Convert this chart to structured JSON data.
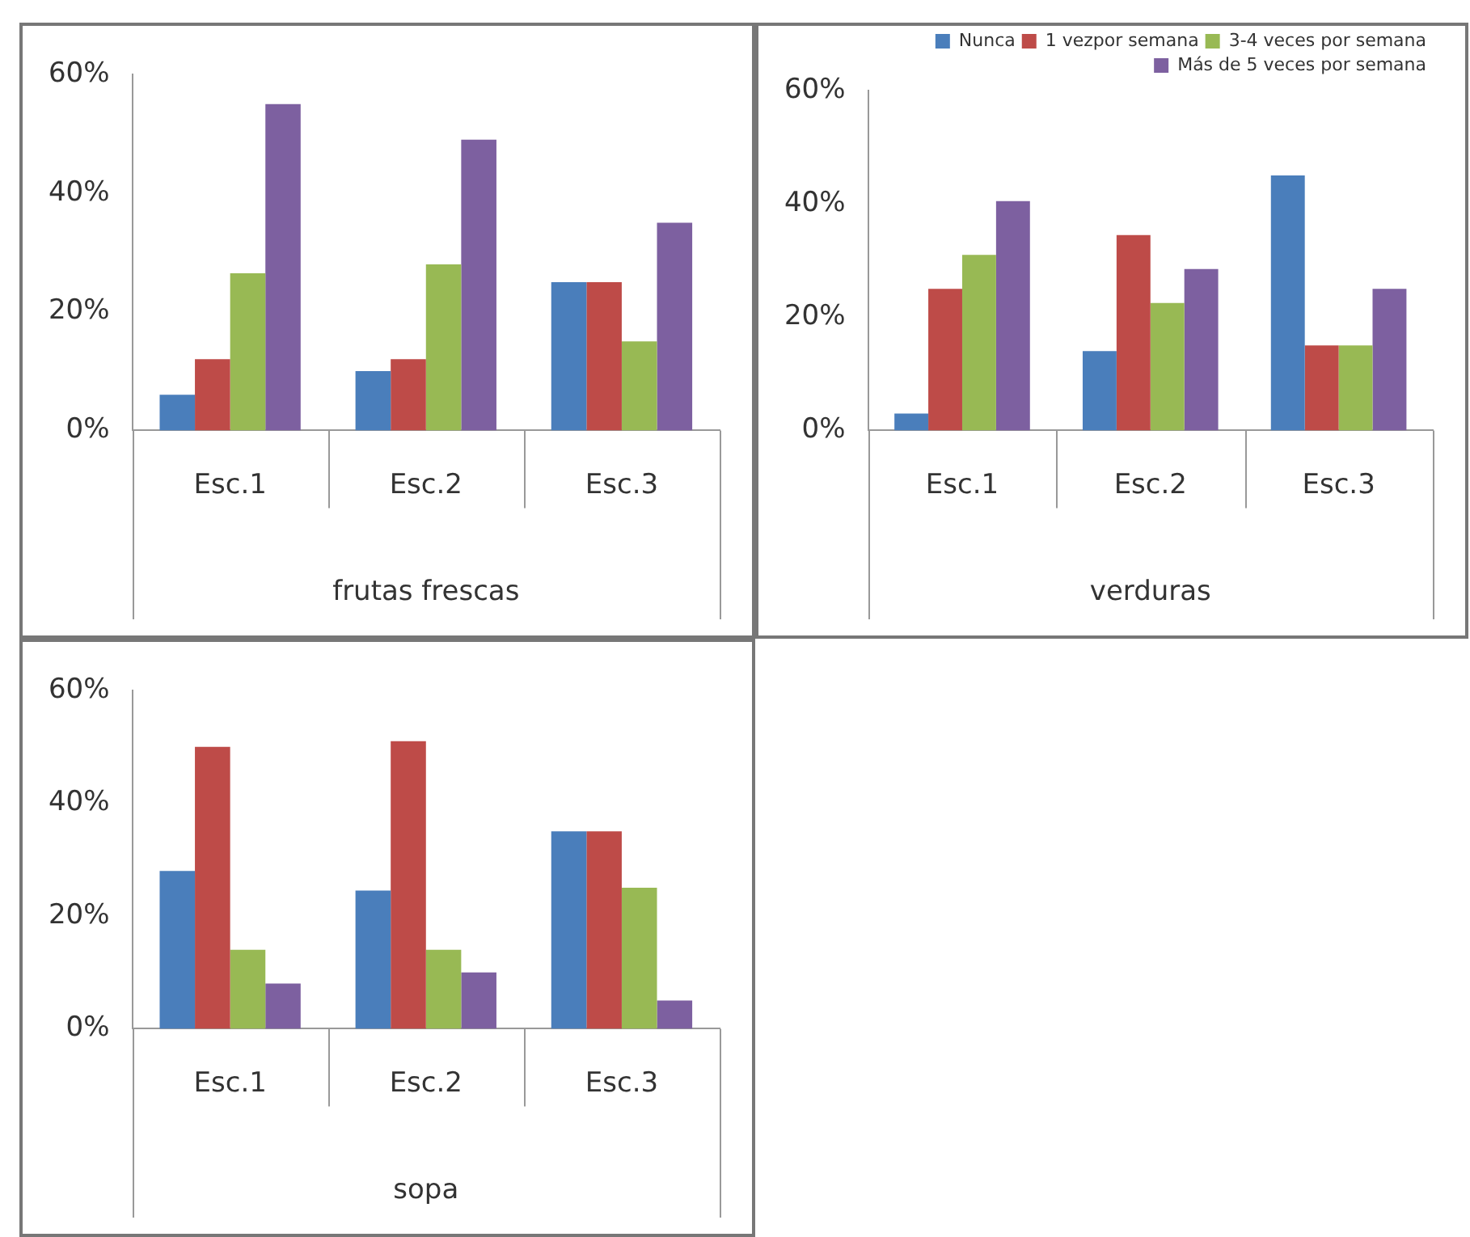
{
  "chart_data": [
    {
      "type": "bar",
      "xlabel": "frutas frescas",
      "categories": [
        "Esc.1",
        "Esc.2",
        "Esc.3"
      ],
      "series": [
        {
          "color": "#4a7ebb",
          "values": [
            6,
            10,
            25
          ]
        },
        {
          "color": "#be4b48",
          "values": [
            12,
            12,
            25
          ]
        },
        {
          "color": "#98b954",
          "values": [
            26.5,
            28,
            15
          ]
        },
        {
          "color": "#7d60a0",
          "values": [
            55,
            49,
            35
          ]
        }
      ],
      "ylim": [
        0,
        60
      ],
      "yticks": [
        {
          "value": 0,
          "label": "0%"
        },
        {
          "value": 20,
          "label": "20%"
        },
        {
          "value": 40,
          "label": "40%"
        },
        {
          "value": 60,
          "label": "60%"
        }
      ],
      "grid": false,
      "legend": false
    },
    {
      "type": "bar",
      "xlabel": "verduras",
      "categories": [
        "Esc.1",
        "Esc.2",
        "Esc.3"
      ],
      "series": [
        {
          "name": "Nunca",
          "color": "#4a7ebb",
          "values": [
            3,
            14,
            45
          ]
        },
        {
          "name": "1 vezpor semana",
          "color": "#be4b48",
          "values": [
            25,
            34.5,
            15
          ]
        },
        {
          "name": "3-4 veces por semana",
          "color": "#98b954",
          "values": [
            31,
            22.5,
            15
          ]
        },
        {
          "name": "Más de 5 veces por semana",
          "color": "#7d60a0",
          "values": [
            40.5,
            28.5,
            25
          ]
        }
      ],
      "ylim": [
        0,
        60
      ],
      "yticks": [
        {
          "value": 0,
          "label": "0%"
        },
        {
          "value": 20,
          "label": "20%"
        },
        {
          "value": 40,
          "label": "40%"
        },
        {
          "value": 60,
          "label": "60%"
        }
      ],
      "grid": false,
      "legend": "top right"
    },
    {
      "type": "bar",
      "xlabel": "sopa",
      "categories": [
        "Esc.1",
        "Esc.2",
        "Esc.3"
      ],
      "series": [
        {
          "color": "#4a7ebb",
          "values": [
            28,
            24.5,
            35
          ]
        },
        {
          "color": "#be4b48",
          "values": [
            50,
            51,
            35
          ]
        },
        {
          "color": "#98b954",
          "values": [
            14,
            14,
            25
          ]
        },
        {
          "color": "#7d60a0",
          "values": [
            8,
            10,
            5
          ]
        }
      ],
      "ylim": [
        0,
        60
      ],
      "yticks": [
        {
          "value": 0,
          "label": "0%"
        },
        {
          "value": 20,
          "label": "20%"
        },
        {
          "value": 40,
          "label": "40%"
        },
        {
          "value": 60,
          "label": "60%"
        }
      ],
      "grid": false,
      "legend": false
    }
  ]
}
